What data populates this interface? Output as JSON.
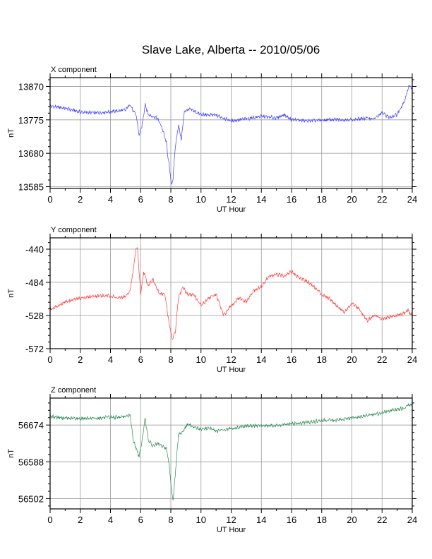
{
  "title": "Slave Lake, Alberta -- 2010/05/06",
  "chart_data": [
    {
      "type": "line",
      "panel_title": "X component",
      "xlabel": "UT Hour",
      "ylabel": "nT",
      "xlim": [
        0,
        24
      ],
      "ylim": [
        13580,
        13895
      ],
      "x_ticks": [
        0,
        2,
        4,
        6,
        8,
        10,
        12,
        14,
        16,
        18,
        20,
        22,
        24
      ],
      "y_ticks": [
        13585,
        13680,
        13775,
        13870
      ],
      "grid": true,
      "color": "#3c3cff",
      "x": [
        0,
        1,
        2,
        3,
        4,
        5,
        5.3,
        5.5,
        5.7,
        5.9,
        6.1,
        6.3,
        6.5,
        6.8,
        7.1,
        7.4,
        7.7,
        7.9,
        8.05,
        8.15,
        8.3,
        8.5,
        8.7,
        8.9,
        9.3,
        10,
        11,
        11.5,
        12,
        13,
        14,
        15,
        15.5,
        16,
        17,
        18,
        19,
        20,
        21,
        21.5,
        22,
        22.5,
        23,
        23.5,
        23.8,
        24
      ],
      "values": [
        13814,
        13808,
        13797,
        13795,
        13798,
        13803,
        13820,
        13800,
        13790,
        13730,
        13760,
        13820,
        13790,
        13785,
        13780,
        13755,
        13710,
        13640,
        13590,
        13610,
        13700,
        13760,
        13720,
        13800,
        13805,
        13790,
        13788,
        13780,
        13772,
        13778,
        13785,
        13780,
        13790,
        13776,
        13772,
        13774,
        13776,
        13775,
        13780,
        13778,
        13795,
        13782,
        13790,
        13830,
        13875,
        13860
      ]
    },
    {
      "type": "line",
      "panel_title": "Y component",
      "xlabel": "UT Hour",
      "ylabel": "nT",
      "xlim": [
        0,
        24
      ],
      "ylim": [
        -572,
        -425
      ],
      "x_ticks": [
        0,
        2,
        4,
        6,
        8,
        10,
        12,
        14,
        16,
        18,
        20,
        22,
        24
      ],
      "y_ticks": [
        -440,
        -484,
        -528,
        -572
      ],
      "grid": true,
      "color": "#ff3c3c",
      "x": [
        0,
        1,
        2,
        3,
        4,
        4.5,
        5,
        5.3,
        5.5,
        5.7,
        5.8,
        6,
        6.2,
        6.5,
        6.8,
        7.2,
        7.6,
        7.9,
        8.1,
        8.3,
        8.5,
        8.8,
        9.1,
        9.5,
        10,
        10.5,
        11,
        11.5,
        12,
        12.5,
        13,
        13.5,
        14,
        14.5,
        15,
        15.5,
        16,
        16.5,
        17,
        17.5,
        18,
        18.5,
        19,
        19.5,
        20,
        20.5,
        21,
        21.5,
        22,
        22.5,
        23,
        23.5,
        23.7,
        24
      ],
      "values": [
        -520,
        -510,
        -505,
        -502,
        -502,
        -505,
        -503,
        -495,
        -470,
        -438,
        -440,
        -500,
        -470,
        -488,
        -480,
        -498,
        -500,
        -540,
        -560,
        -550,
        -505,
        -490,
        -500,
        -500,
        -515,
        -505,
        -500,
        -528,
        -515,
        -505,
        -510,
        -495,
        -490,
        -476,
        -474,
        -475,
        -470,
        -478,
        -482,
        -490,
        -500,
        -505,
        -515,
        -524,
        -512,
        -520,
        -535,
        -528,
        -532,
        -530,
        -528,
        -525,
        -520,
        -530
      ]
    },
    {
      "type": "line",
      "panel_title": "Z component",
      "xlabel": "UT Hour",
      "ylabel": "nT",
      "xlim": [
        0,
        24
      ],
      "ylim": [
        56478,
        56737
      ],
      "x_ticks": [
        0,
        2,
        4,
        6,
        8,
        10,
        12,
        14,
        16,
        18,
        20,
        22,
        24
      ],
      "y_ticks": [
        56502,
        56588,
        56674
      ],
      "grid": true,
      "color": "#2e8b57",
      "x": [
        0,
        1,
        2,
        3,
        4,
        5,
        5.3,
        5.5,
        5.7,
        5.9,
        6.1,
        6.3,
        6.5,
        6.8,
        7.1,
        7.4,
        7.7,
        7.9,
        8.05,
        8.15,
        8.3,
        8.5,
        8.8,
        9.1,
        9.5,
        10,
        10.5,
        11,
        11.5,
        12,
        12.5,
        13,
        14,
        15,
        16,
        17,
        18,
        19,
        20,
        21,
        22,
        22.5,
        23,
        23.5,
        23.8,
        24
      ],
      "values": [
        56694,
        56690,
        56689,
        56690,
        56692,
        56693,
        56698,
        56640,
        56620,
        56600,
        56640,
        56690,
        56640,
        56625,
        56630,
        56625,
        56620,
        56580,
        56520,
        56500,
        56560,
        56650,
        56660,
        56675,
        56670,
        56664,
        56667,
        56660,
        56662,
        56666,
        56668,
        56672,
        56672,
        56673,
        56677,
        56680,
        56684,
        56686,
        56690,
        56696,
        56702,
        56708,
        56710,
        56714,
        56722,
        56720
      ]
    }
  ]
}
